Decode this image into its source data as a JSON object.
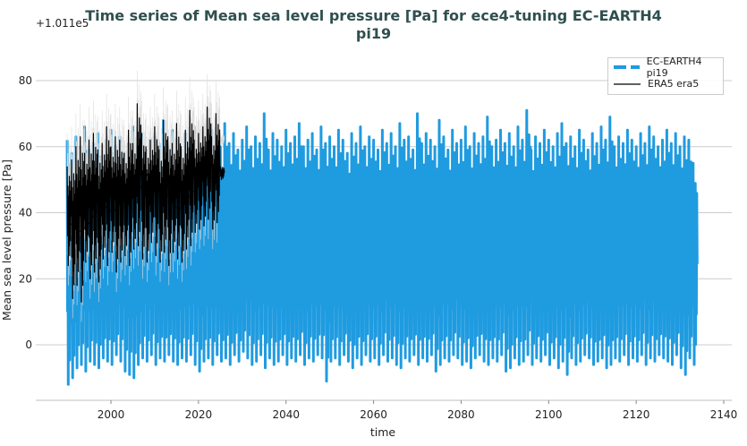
{
  "chart_data": {
    "type": "line",
    "title": "Time series of Mean sea level pressure [Pa] for ece4-tuning EC-EARTH4 pi19",
    "title_lines": [
      "Time series of Mean sea level pressure [Pa] for ece4-tuning EC-EARTH4",
      "pi19"
    ],
    "xlabel": "time",
    "ylabel": "Mean sea level pressure [Pa]",
    "y_offset_label": "+1.011e5",
    "xlim": [
      1983,
      2141
    ],
    "ylim": [
      -16,
      88
    ],
    "xticks": [
      2000,
      2020,
      2040,
      2060,
      2080,
      2100,
      2120,
      2140
    ],
    "yticks": [
      0,
      20,
      40,
      60,
      80
    ],
    "grid": "horizontal",
    "legend_position": "top-right",
    "series": [
      {
        "name": "EC-EARTH4 pi19",
        "color": "#1f9be0",
        "style": "dashed-legend",
        "start_year": 1990,
        "annual_max": [
          62,
          58,
          63,
          60,
          66,
          59,
          61,
          64,
          57,
          62,
          65,
          60,
          63,
          58,
          61,
          66,
          60,
          64,
          59,
          62,
          63,
          61,
          68,
          60,
          65,
          62,
          59,
          64,
          61,
          66,
          60,
          63,
          58,
          65,
          62,
          60,
          67,
          61,
          64,
          59,
          62,
          66,
          60,
          63,
          61,
          70,
          59,
          64,
          62,
          60,
          65,
          61,
          63,
          67,
          60,
          62,
          64,
          59,
          66,
          61,
          63,
          60,
          65,
          62,
          58,
          64,
          61,
          66,
          60,
          63,
          62,
          59,
          65,
          61,
          64,
          60,
          67,
          62,
          63,
          59,
          70,
          61,
          64,
          62,
          60,
          68,
          63,
          59,
          65,
          61,
          62,
          66,
          60,
          64,
          61,
          63,
          69,
          60,
          62,
          65,
          61,
          64,
          60,
          66,
          62,
          71,
          59,
          63,
          61,
          65,
          62,
          60,
          64,
          67,
          61,
          63,
          60,
          65,
          62,
          59,
          64,
          61,
          66,
          62,
          69,
          60,
          63,
          61,
          65,
          62,
          60,
          64,
          61,
          66,
          63,
          60,
          62,
          65,
          61,
          64,
          60,
          63,
          62,
          55
        ],
        "annual_min": [
          -12,
          -10,
          -7,
          -6,
          -8,
          -5,
          -6,
          -7,
          -4,
          -5,
          -6,
          -3,
          -5,
          -8,
          -9,
          -10,
          -6,
          -4,
          -5,
          -3,
          -6,
          -4,
          -5,
          -3,
          -5,
          -6,
          -4,
          -5,
          -3,
          -6,
          -8,
          -5,
          -4,
          -6,
          -3,
          -5,
          -4,
          -6,
          -3,
          -5,
          -2,
          -4,
          -6,
          -5,
          -3,
          -7,
          -4,
          -6,
          -5,
          -3,
          -6,
          -4,
          -5,
          -3,
          -6,
          -4,
          -5,
          -3,
          -4,
          -11,
          -5,
          -4,
          -6,
          -3,
          -5,
          -7,
          -4,
          -6,
          -3,
          -5,
          -4,
          -6,
          -3,
          -5,
          -4,
          -6,
          -7,
          -4,
          -5,
          -3,
          -6,
          -4,
          -5,
          -3,
          -8,
          -6,
          -4,
          -5,
          -3,
          -4,
          -6,
          -5,
          -7,
          -4,
          -3,
          -5,
          -6,
          -4,
          -5,
          -3,
          -8,
          -7,
          -4,
          -6,
          -5,
          -3,
          -6,
          -4,
          -5,
          -3,
          -6,
          -4,
          -7,
          -5,
          -9,
          -4,
          -6,
          -5,
          -3,
          -4,
          -6,
          -5,
          -4,
          -7,
          -6,
          -4,
          -5,
          -3,
          -6,
          -4,
          -5,
          -3,
          -6,
          -4,
          -5,
          -3,
          -4,
          -5,
          -6,
          -3,
          -7,
          -9,
          -4,
          -6
        ]
      },
      {
        "name": "ERA5 era5",
        "color": "#000000",
        "start_year": 1990,
        "annual_max": [
          54,
          56,
          60,
          63,
          58,
          62,
          64,
          59,
          61,
          66,
          60,
          63,
          62,
          58,
          65,
          61,
          73,
          64,
          60,
          62,
          66,
          59,
          68,
          63,
          61,
          67,
          60,
          65,
          71,
          62,
          64,
          66,
          72,
          63,
          70,
          54
        ],
        "annual_min": [
          24,
          14,
          18,
          13,
          25,
          20,
          22,
          19,
          26,
          24,
          28,
          22,
          25,
          27,
          24,
          29,
          30,
          26,
          25,
          31,
          27,
          25,
          28,
          24,
          28,
          26,
          25,
          29,
          30,
          34,
          35,
          36,
          38,
          35,
          37,
          50
        ],
        "running_mean": [
          37,
          36,
          34,
          35,
          36,
          38,
          40,
          41,
          42,
          41,
          40,
          42,
          44,
          43,
          44,
          45,
          47,
          49,
          52,
          50,
          48,
          47,
          46,
          44,
          42,
          41,
          42,
          44,
          46,
          47,
          49,
          50,
          51,
          50,
          51,
          51
        ]
      }
    ]
  }
}
